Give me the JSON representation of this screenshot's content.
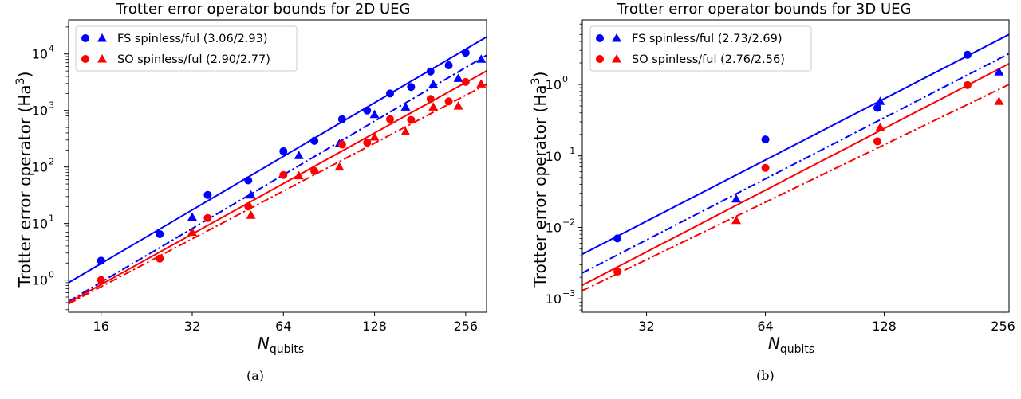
{
  "chart_data": [
    {
      "type": "scatter",
      "title": "Trotter error operator bounds for 2D UEG",
      "xlabel": "N",
      "xlabel_sub": "qubits",
      "ylabel": "Trotter error operator (Ha",
      "ylabel_sup": "3",
      "ylabel_end": ")",
      "xscale": "log2",
      "yscale": "log10",
      "xlim": [
        12.5,
        300
      ],
      "ylim": [
        0.27,
        40000
      ],
      "x_ticks": [
        16,
        32,
        64,
        128,
        256
      ],
      "x_tick_labels": [
        "16",
        "32",
        "64",
        "128",
        "256"
      ],
      "y_ticks": [
        1,
        10,
        100,
        1000,
        10000
      ],
      "y_tick_labels": [
        "10",
        "10",
        "10",
        "10",
        "10"
      ],
      "y_tick_exponents": [
        "0",
        "1",
        "2",
        "3",
        "4"
      ],
      "legend_position": "upper-left",
      "legend": [
        {
          "label": "FS spinless/ful (3.06/2.93)",
          "color": "#0000ff"
        },
        {
          "label": "SO spinless/ful (2.90/2.77)",
          "color": "#ff0000"
        }
      ],
      "caption": "(a)",
      "series": [
        {
          "color": "#0000ff",
          "marker": "circle",
          "points": [
            [
              16,
              2.2
            ],
            [
              25,
              6.5
            ],
            [
              36,
              32
            ],
            [
              49,
              58
            ],
            [
              64,
              190
            ],
            [
              81,
              290
            ],
            [
              100,
              700
            ],
            [
              121,
              1000
            ],
            [
              144,
              2000
            ],
            [
              169,
              2600
            ],
            [
              196,
              4900
            ],
            [
              225,
              6300
            ],
            [
              256,
              10500
            ]
          ],
          "fit": {
            "x": [
              12.5,
              300
            ],
            "y": [
              0.9,
              20000
            ],
            "style": "solid"
          }
        },
        {
          "color": "#0000ff",
          "marker": "triangle",
          "points": [
            [
              32,
              13
            ],
            [
              50,
              32
            ],
            [
              72,
              160
            ],
            [
              98,
              260
            ],
            [
              128,
              850
            ],
            [
              162,
              1150
            ],
            [
              200,
              2900
            ],
            [
              242,
              3700
            ],
            [
              288,
              8100
            ]
          ],
          "fit": {
            "x": [
              12.5,
              300
            ],
            "y": [
              0.42,
              9500
            ],
            "style": "dashdot"
          }
        },
        {
          "color": "#ff0000",
          "marker": "circle",
          "points": [
            [
              16,
              1.0
            ],
            [
              25,
              2.4
            ],
            [
              36,
              12.5
            ],
            [
              49,
              20
            ],
            [
              64,
              72
            ],
            [
              81,
              85
            ],
            [
              100,
              250
            ],
            [
              121,
              270
            ],
            [
              144,
              700
            ],
            [
              169,
              680
            ],
            [
              196,
              1600
            ],
            [
              225,
              1450
            ],
            [
              256,
              3200
            ]
          ],
          "fit": {
            "x": [
              12.5,
              300
            ],
            "y": [
              0.4,
              5000
            ],
            "style": "solid"
          }
        },
        {
          "color": "#ff0000",
          "marker": "triangle",
          "points": [
            [
              32,
              7
            ],
            [
              50,
              14
            ],
            [
              72,
              70
            ],
            [
              98,
              100
            ],
            [
              128,
              340
            ],
            [
              162,
              420
            ],
            [
              200,
              1150
            ],
            [
              242,
              1200
            ],
            [
              288,
              2950
            ]
          ],
          "fit": {
            "x": [
              12.5,
              300
            ],
            "y": [
              0.38,
              2900
            ],
            "style": "dashdot"
          }
        }
      ]
    },
    {
      "type": "scatter",
      "title": "Trotter error operator bounds for 3D UEG",
      "xlabel": "N",
      "xlabel_sub": "qubits",
      "ylabel": "Trotter error operator (Ha",
      "ylabel_sup": "3",
      "ylabel_end": ")",
      "xscale": "log2",
      "yscale": "log10",
      "xlim": [
        22,
        265
      ],
      "ylim": [
        0.00065,
        8
      ],
      "x_ticks": [
        32,
        64,
        128,
        256
      ],
      "x_tick_labels": [
        "32",
        "64",
        "128",
        "256"
      ],
      "y_ticks": [
        0.001,
        0.01,
        0.1,
        1
      ],
      "y_tick_labels": [
        "10",
        "10",
        "10",
        "10"
      ],
      "y_tick_exponents": [
        "−3",
        "−2",
        "−1",
        "0"
      ],
      "legend_position": "upper-left",
      "legend": [
        {
          "label": "FS spinless/ful (2.73/2.69)",
          "color": "#0000ff"
        },
        {
          "label": "SO spinless/ful (2.76/2.56)",
          "color": "#ff0000"
        }
      ],
      "caption": "(b)",
      "series": [
        {
          "color": "#0000ff",
          "marker": "circle",
          "points": [
            [
              27,
              0.007
            ],
            [
              64,
              0.17
            ],
            [
              123,
              0.47
            ],
            [
              208,
              2.6
            ]
          ],
          "fit": {
            "x": [
              22,
              265
            ],
            "y": [
              0.0042,
              5.0
            ],
            "style": "solid"
          }
        },
        {
          "color": "#0000ff",
          "marker": "triangle",
          "points": [
            [
              54,
              0.025
            ],
            [
              125,
              0.58
            ],
            [
              250,
              1.5
            ]
          ],
          "fit": {
            "x": [
              22,
              265
            ],
            "y": [
              0.0023,
              2.7
            ],
            "style": "dashdot"
          }
        },
        {
          "color": "#ff0000",
          "marker": "circle",
          "points": [
            [
              27,
              0.0024
            ],
            [
              64,
              0.068
            ],
            [
              123,
              0.16
            ],
            [
              208,
              0.98
            ]
          ],
          "fit": {
            "x": [
              22,
              265
            ],
            "y": [
              0.00155,
              1.95
            ],
            "style": "solid"
          }
        },
        {
          "color": "#ff0000",
          "marker": "triangle",
          "points": [
            [
              54,
              0.0125
            ],
            [
              125,
              0.25
            ],
            [
              250,
              0.58
            ]
          ],
          "fit": {
            "x": [
              22,
              265
            ],
            "y": [
              0.0013,
              1.0
            ],
            "style": "dashdot"
          }
        }
      ]
    }
  ]
}
